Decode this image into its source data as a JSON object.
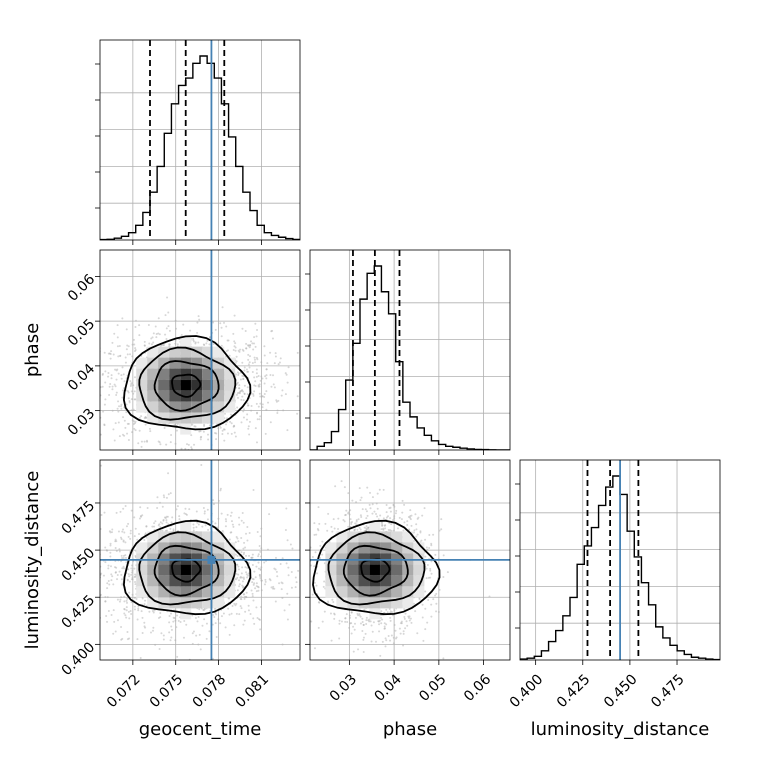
{
  "chart_data": {
    "type": "corner",
    "parameters": [
      "geocent_time",
      "phase",
      "luminosity_distance"
    ],
    "axis_labels": {
      "geocent_time": "geocent_time",
      "phase": "phase",
      "luminosity_distance": "luminosity_distance"
    },
    "ranges": {
      "geocent_time": [
        0.0697,
        0.0837
      ],
      "phase": [
        0.0212,
        0.0659
      ],
      "luminosity_distance": [
        0.3917,
        0.4978
      ]
    },
    "ticks": {
      "geocent_time": [
        0.072,
        0.075,
        0.078,
        0.081
      ],
      "phase": [
        0.03,
        0.04,
        0.05,
        0.06
      ],
      "luminosity_distance": [
        0.4,
        0.425,
        0.45,
        0.475
      ]
    },
    "tick_labels": {
      "geocent_time": [
        "0.072",
        "0.075",
        "0.078",
        "0.081"
      ],
      "phase": [
        "0.03",
        "0.04",
        "0.05",
        "0.06"
      ],
      "luminosity_distance": [
        "0.400",
        "0.425",
        "0.450",
        "0.475"
      ]
    },
    "truths": {
      "geocent_time": 0.0775,
      "luminosity_distance": 0.4448
    },
    "truth_color": "#4682b4",
    "quantiles": {
      "geocent_time": [
        0.0732,
        0.0757,
        0.0784
      ],
      "phase": [
        0.0308,
        0.0357,
        0.0412
      ],
      "luminosity_distance": [
        0.4275,
        0.4395,
        0.4545
      ]
    },
    "histograms": {
      "geocent_time": [
        0.2,
        0.4,
        1,
        2,
        4,
        8,
        15,
        26,
        40,
        58,
        74,
        84,
        88,
        96,
        100,
        96,
        88,
        74,
        56,
        40,
        26,
        16,
        8,
        4,
        2.5,
        1.5,
        0.8,
        0.3
      ],
      "phase": [
        0,
        2,
        4,
        10,
        22,
        38,
        58,
        82,
        96,
        100,
        86,
        74,
        48,
        26,
        18,
        12,
        8,
        5,
        3,
        2,
        1.5,
        1,
        0.6,
        0.3,
        0.2,
        0.1,
        0,
        0
      ],
      "luminosity_distance": [
        0.5,
        1,
        2,
        5,
        10,
        16,
        24,
        34,
        52,
        62,
        72,
        84,
        94,
        100,
        90,
        70,
        56,
        42,
        30,
        18,
        12,
        8,
        5,
        3,
        1.5,
        1,
        0.5,
        0.2
      ]
    },
    "correlations": {
      "phase|geocent_time": 0,
      "luminosity_distance|geocent_time": 0,
      "luminosity_distance|phase": 0
    },
    "grid": true,
    "hist_color": "#000000",
    "point_color": "#b0b0b0"
  }
}
